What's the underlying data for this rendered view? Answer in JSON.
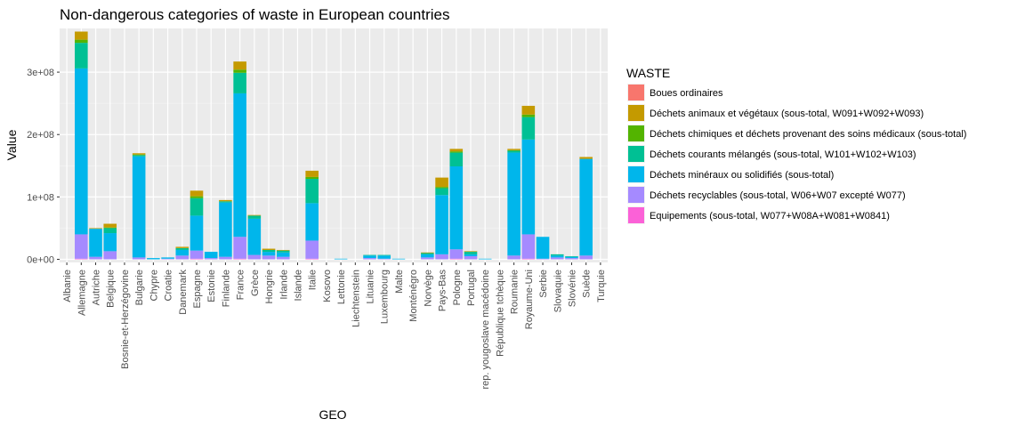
{
  "chart_data": {
    "type": "bar",
    "stacked": true,
    "title": "Non-dangerous categories of waste in European countries",
    "xlabel": "GEO",
    "ylabel": "Value",
    "ylim": [
      -5000000,
      370000000
    ],
    "yticks": [
      0,
      100000000,
      200000000,
      300000000
    ],
    "ytick_labels": [
      "0e+00",
      "1e+08",
      "2e+08",
      "3e+08"
    ],
    "grid": true,
    "legend_title": "WASTE",
    "legend_position": "right",
    "categories": [
      "Albanie",
      "Allemagne",
      "Autriche",
      "Belgique",
      "Bosnie-et-Herzégovine",
      "Bulgarie",
      "Chypre",
      "Croatie",
      "Danemark",
      "Espagne",
      "Estonie",
      "Finlande",
      "France",
      "Grèce",
      "Hongrie",
      "Irlande",
      "Islande",
      "Italie",
      "Kosovo",
      "Lettonie",
      "Liechtenstein",
      "Lituanie",
      "Luxembourg",
      "Malte",
      "Monténégro",
      "Norvège",
      "Pays-Bas",
      "Pologne",
      "Portugal",
      "rep. yougoslave macédoine",
      "République tchèque",
      "Roumanie",
      "Royaume-Uni",
      "Serbie",
      "Slovaquie",
      "Slovénie",
      "Suède",
      "Turquie"
    ],
    "series": [
      {
        "name": "Boues ordinaires",
        "color": "#F8766D",
        "values": [
          0,
          0,
          0,
          0,
          0,
          0,
          0,
          0,
          0,
          0,
          0,
          0,
          0,
          0,
          0,
          0,
          0,
          0,
          0,
          0,
          0,
          0,
          0,
          0,
          0,
          0,
          0,
          0,
          0,
          0,
          0,
          0,
          0,
          0,
          0,
          0,
          0,
          0
        ]
      },
      {
        "name": "Déchets animaux et végétaux  (sous-total, W091+W092+W093)",
        "color": "#C49A00",
        "values": [
          0,
          13000000,
          1000000,
          6000000,
          0,
          2000000,
          0,
          0,
          2000000,
          9000000,
          0,
          2000000,
          13000000,
          1000000,
          2000000,
          1000000,
          0,
          10000000,
          0,
          0,
          0,
          0,
          0,
          0,
          0,
          1000000,
          15000000,
          4000000,
          1000000,
          0,
          0,
          2000000,
          14000000,
          0,
          0,
          0,
          3000000,
          0
        ]
      },
      {
        "name": "Déchets chimiques et déchets provenant des soins médicaux  (sous-total)",
        "color": "#53B400",
        "values": [
          0,
          5000000,
          0,
          1000000,
          0,
          1000000,
          0,
          0,
          0,
          3000000,
          0,
          0,
          5000000,
          0,
          0,
          0,
          0,
          3000000,
          0,
          0,
          0,
          0,
          0,
          0,
          0,
          0,
          2000000,
          2000000,
          0,
          0,
          0,
          1000000,
          4000000,
          0,
          0,
          0,
          0,
          0
        ]
      },
      {
        "name": "Déchets courants mélangés (sous-total, W101+W102+W103)",
        "color": "#00C094",
        "values": [
          0,
          41000000,
          0,
          8000000,
          0,
          2000000,
          0,
          0,
          3000000,
          28000000,
          0,
          2000000,
          33000000,
          5000000,
          3000000,
          3000000,
          0,
          39000000,
          0,
          0,
          0,
          1000000,
          1000000,
          0,
          0,
          2000000,
          11000000,
          22000000,
          4000000,
          0,
          0,
          3000000,
          36000000,
          0,
          2000000,
          1000000,
          0,
          0
        ]
      },
      {
        "name": "Déchets minéraux ou solidifiés (sous-total)",
        "color": "#00B6EB",
        "values": [
          0,
          266000000,
          45000000,
          29000000,
          0,
          162000000,
          2000000,
          2000000,
          9000000,
          56000000,
          10000000,
          87000000,
          230000000,
          58000000,
          6000000,
          7000000,
          0,
          60000000,
          0,
          1000000,
          0,
          4000000,
          5000000,
          1000000,
          0,
          5000000,
          95000000,
          133000000,
          3000000,
          1000000,
          0,
          165000000,
          152000000,
          35000000,
          3000000,
          2000000,
          155000000,
          0
        ]
      },
      {
        "name": "Déchets recyclables (sous-total, W06+W07 excepté W077)",
        "color": "#A58AFF",
        "values": [
          0,
          39000000,
          4000000,
          13000000,
          0,
          3000000,
          0,
          1000000,
          6000000,
          13000000,
          2000000,
          4000000,
          35000000,
          7000000,
          6000000,
          4000000,
          0,
          29000000,
          0,
          0,
          0,
          2000000,
          1000000,
          0,
          0,
          3000000,
          8000000,
          15000000,
          5000000,
          0,
          0,
          6000000,
          39000000,
          1000000,
          3000000,
          2000000,
          6000000,
          0
        ]
      },
      {
        "name": "Equipements (sous-total, W077+W08A+W081+W0841)",
        "color": "#FB61D7",
        "values": [
          0,
          1000000,
          0,
          0,
          0,
          0,
          0,
          0,
          0,
          1000000,
          0,
          0,
          1000000,
          0,
          0,
          0,
          0,
          1000000,
          0,
          0,
          0,
          0,
          0,
          0,
          0,
          0,
          0,
          1000000,
          0,
          0,
          0,
          0,
          1000000,
          0,
          0,
          0,
          0,
          0
        ]
      }
    ]
  }
}
